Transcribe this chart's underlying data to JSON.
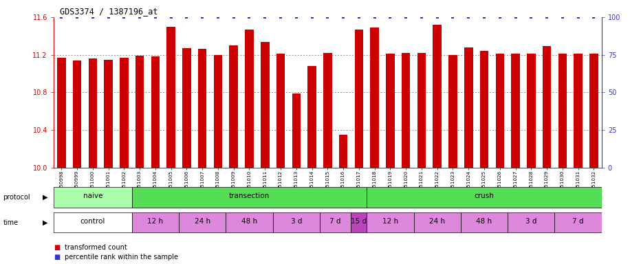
{
  "title": "GDS3374 / 1387196_at",
  "samples": [
    "GSM250998",
    "GSM250999",
    "GSM251000",
    "GSM251001",
    "GSM251002",
    "GSM251003",
    "GSM251004",
    "GSM251005",
    "GSM251006",
    "GSM251007",
    "GSM251008",
    "GSM251009",
    "GSM251010",
    "GSM251011",
    "GSM251012",
    "GSM251013",
    "GSM251014",
    "GSM251015",
    "GSM251016",
    "GSM251017",
    "GSM251018",
    "GSM251019",
    "GSM251020",
    "GSM251021",
    "GSM251022",
    "GSM251023",
    "GSM251024",
    "GSM251025",
    "GSM251026",
    "GSM251027",
    "GSM251028",
    "GSM251029",
    "GSM251030",
    "GSM251031",
    "GSM251032"
  ],
  "bar_values": [
    11.17,
    11.14,
    11.16,
    11.15,
    11.17,
    11.19,
    11.18,
    11.5,
    11.27,
    11.26,
    11.2,
    11.3,
    11.47,
    11.34,
    11.21,
    10.79,
    11.08,
    11.22,
    10.35,
    11.47,
    11.49,
    11.21,
    11.22,
    11.22,
    11.52,
    11.2,
    11.28,
    11.24,
    11.21,
    11.21,
    11.21,
    11.29,
    11.21,
    11.21,
    11.21
  ],
  "ylim_left": [
    10.0,
    11.6
  ],
  "ylim_right": [
    0,
    100
  ],
  "yticks_left": [
    10.0,
    10.4,
    10.8,
    11.2,
    11.6
  ],
  "yticks_right": [
    0,
    25,
    50,
    75,
    100
  ],
  "bar_color": "#cc0000",
  "percentile_color": "#3333cc",
  "naive_color": "#aaffaa",
  "trans_color": "#55dd55",
  "crush_color": "#55dd55",
  "time_light_color": "#dd88dd",
  "time_dark_color": "#bb44bb",
  "time_white_color": "#ffffff",
  "proto_groups": [
    {
      "label": "naive",
      "start": 0,
      "end": 4
    },
    {
      "label": "transection",
      "start": 5,
      "end": 19
    },
    {
      "label": "crush",
      "start": 20,
      "end": 34
    }
  ],
  "time_groups": [
    {
      "label": "control",
      "start": 0,
      "end": 4,
      "dark": false
    },
    {
      "label": "12 h",
      "start": 5,
      "end": 7,
      "dark": false
    },
    {
      "label": "24 h",
      "start": 8,
      "end": 10,
      "dark": false
    },
    {
      "label": "48 h",
      "start": 11,
      "end": 13,
      "dark": false
    },
    {
      "label": "3 d",
      "start": 14,
      "end": 16,
      "dark": false
    },
    {
      "label": "7 d",
      "start": 17,
      "end": 18,
      "dark": false
    },
    {
      "label": "15 d",
      "start": 19,
      "end": 19,
      "dark": true
    },
    {
      "label": "12 h",
      "start": 20,
      "end": 22,
      "dark": false
    },
    {
      "label": "24 h",
      "start": 23,
      "end": 25,
      "dark": false
    },
    {
      "label": "48 h",
      "start": 26,
      "end": 28,
      "dark": false
    },
    {
      "label": "3 d",
      "start": 29,
      "end": 31,
      "dark": false
    },
    {
      "label": "7 d",
      "start": 32,
      "end": 34,
      "dark": false
    }
  ]
}
